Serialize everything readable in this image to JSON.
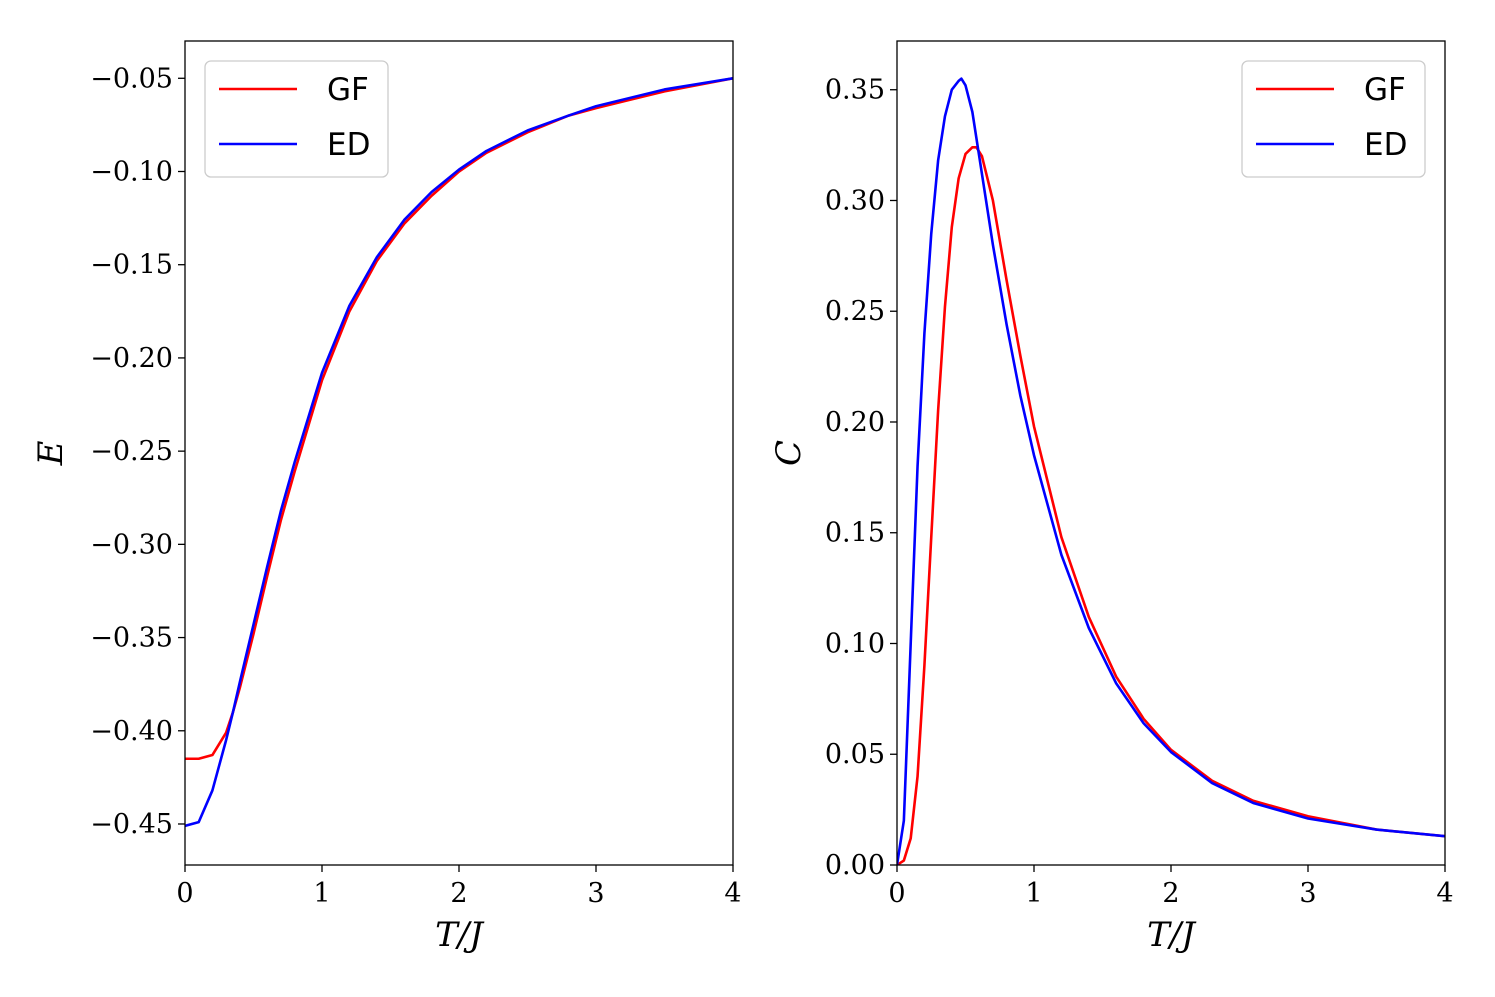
{
  "chart_data": [
    {
      "type": "line",
      "xlabel": "T/J",
      "ylabel": "E",
      "xlim": [
        0,
        4
      ],
      "ylim": [
        -0.472,
        -0.03
      ],
      "xticks": [
        0,
        1,
        2,
        3,
        4
      ],
      "xtick_labels": [
        "0",
        "1",
        "2",
        "3",
        "4"
      ],
      "yticks": [
        -0.45,
        -0.4,
        -0.35,
        -0.3,
        -0.25,
        -0.2,
        -0.15,
        -0.1,
        -0.05
      ],
      "ytick_labels": [
        "−0.45",
        "−0.40",
        "−0.35",
        "−0.30",
        "−0.25",
        "−0.20",
        "−0.15",
        "−0.10",
        "−0.05"
      ],
      "grid": false,
      "legend_position": "top-left",
      "series": [
        {
          "name": "GF",
          "color": "#ff0000",
          "x": [
            0,
            0.1,
            0.2,
            0.3,
            0.35,
            0.4,
            0.5,
            0.6,
            0.7,
            0.8,
            1.0,
            1.2,
            1.4,
            1.6,
            1.8,
            2.0,
            2.2,
            2.5,
            2.8,
            3.0,
            3.5,
            4.0
          ],
          "y": [
            -0.415,
            -0.415,
            -0.413,
            -0.401,
            -0.39,
            -0.377,
            -0.348,
            -0.317,
            -0.287,
            -0.261,
            -0.212,
            -0.175,
            -0.148,
            -0.128,
            -0.113,
            -0.1,
            -0.09,
            -0.079,
            -0.07,
            -0.066,
            -0.057,
            -0.05
          ]
        },
        {
          "name": "ED",
          "color": "#0000ff",
          "x": [
            0,
            0.1,
            0.2,
            0.3,
            0.35,
            0.4,
            0.5,
            0.6,
            0.7,
            0.8,
            1.0,
            1.2,
            1.4,
            1.6,
            1.8,
            2.0,
            2.2,
            2.5,
            2.8,
            3.0,
            3.5,
            4.0
          ],
          "y": [
            -0.451,
            -0.449,
            -0.432,
            -0.405,
            -0.39,
            -0.374,
            -0.343,
            -0.312,
            -0.282,
            -0.256,
            -0.208,
            -0.172,
            -0.146,
            -0.126,
            -0.111,
            -0.099,
            -0.089,
            -0.078,
            -0.07,
            -0.065,
            -0.056,
            -0.05
          ]
        }
      ]
    },
    {
      "type": "line",
      "xlabel": "T/J",
      "ylabel": "C",
      "xlim": [
        0,
        4
      ],
      "ylim": [
        0,
        0.372
      ],
      "xticks": [
        0,
        1,
        2,
        3,
        4
      ],
      "xtick_labels": [
        "0",
        "1",
        "2",
        "3",
        "4"
      ],
      "yticks": [
        0,
        0.05,
        0.1,
        0.15,
        0.2,
        0.25,
        0.3,
        0.35
      ],
      "ytick_labels": [
        "0.00",
        "0.05",
        "0.10",
        "0.15",
        "0.20",
        "0.25",
        "0.30",
        "0.35"
      ],
      "grid": false,
      "legend_position": "top-right",
      "series": [
        {
          "name": "GF",
          "color": "#ff0000",
          "x": [
            0,
            0.05,
            0.1,
            0.15,
            0.2,
            0.25,
            0.3,
            0.35,
            0.4,
            0.45,
            0.5,
            0.55,
            0.58,
            0.62,
            0.7,
            0.8,
            0.9,
            1.0,
            1.2,
            1.4,
            1.6,
            1.8,
            2.0,
            2.3,
            2.6,
            3.0,
            3.5,
            4.0
          ],
          "y": [
            0,
            0.002,
            0.012,
            0.04,
            0.09,
            0.148,
            0.205,
            0.252,
            0.288,
            0.31,
            0.321,
            0.324,
            0.324,
            0.32,
            0.3,
            0.264,
            0.23,
            0.198,
            0.148,
            0.112,
            0.085,
            0.066,
            0.052,
            0.038,
            0.029,
            0.022,
            0.016,
            0.013
          ]
        },
        {
          "name": "ED",
          "color": "#0000ff",
          "x": [
            0,
            0.05,
            0.1,
            0.15,
            0.2,
            0.25,
            0.3,
            0.35,
            0.4,
            0.45,
            0.47,
            0.5,
            0.55,
            0.6,
            0.7,
            0.8,
            0.9,
            1.0,
            1.2,
            1.4,
            1.6,
            1.8,
            2.0,
            2.3,
            2.6,
            3.0,
            3.5,
            4.0
          ],
          "y": [
            0,
            0.02,
            0.1,
            0.18,
            0.24,
            0.285,
            0.318,
            0.338,
            0.35,
            0.354,
            0.355,
            0.352,
            0.34,
            0.32,
            0.28,
            0.244,
            0.212,
            0.185,
            0.14,
            0.107,
            0.082,
            0.064,
            0.051,
            0.037,
            0.028,
            0.021,
            0.016,
            0.013
          ]
        }
      ]
    }
  ]
}
